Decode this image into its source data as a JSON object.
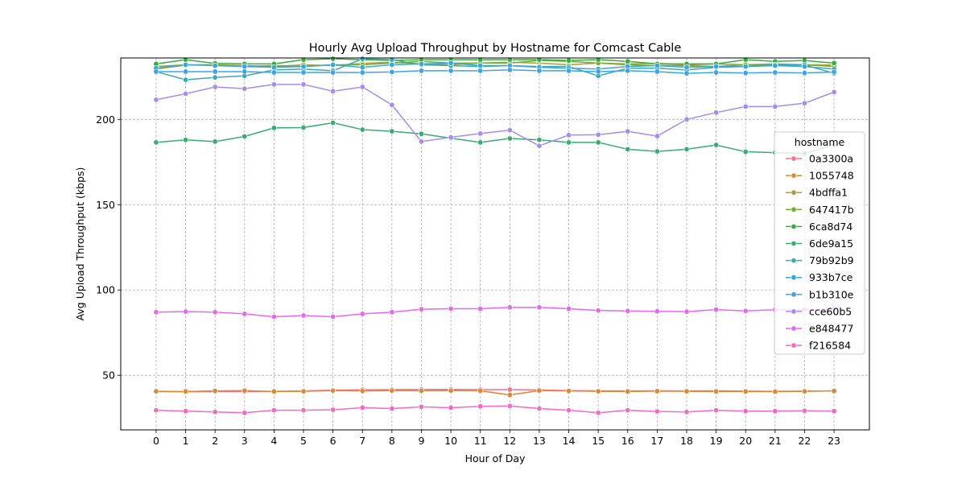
{
  "chart_data": {
    "type": "line",
    "title": "Hourly Avg Upload Throughput by Hostname for Comcast Cable",
    "xlabel": "Hour of Day",
    "ylabel": "Avg Upload Throughput (kbps)",
    "x": [
      0,
      1,
      2,
      3,
      4,
      5,
      6,
      7,
      8,
      9,
      10,
      11,
      12,
      13,
      14,
      15,
      16,
      17,
      18,
      19,
      20,
      21,
      22,
      23
    ],
    "x_ticks": [
      "0",
      "1",
      "2",
      "3",
      "4",
      "5",
      "6",
      "7",
      "8",
      "9",
      "10",
      "11",
      "12",
      "13",
      "14",
      "15",
      "16",
      "17",
      "18",
      "19",
      "20",
      "21",
      "22",
      "23"
    ],
    "y_ticks": [
      "50",
      "100",
      "150",
      "200"
    ],
    "xlim": [
      -1.2,
      24.2
    ],
    "ylim": [
      18,
      236
    ],
    "grid": true,
    "legend": {
      "title": "hostname",
      "placement": "right"
    },
    "series": [
      {
        "name": "0a3300a",
        "color": "#f77189",
        "values": [
          40.5,
          40.3,
          40.5,
          40.4,
          40.6,
          40.8,
          41.3,
          41.5,
          41.6,
          41.7,
          41.7,
          41.6,
          41.6,
          41.4,
          41.0,
          40.9,
          40.8,
          40.9,
          40.8,
          40.9,
          40.7,
          40.6,
          40.7,
          40.8
        ]
      },
      {
        "name": "1055748",
        "color": "#dc8932",
        "values": [
          40.6,
          40.5,
          40.8,
          41.0,
          40.5,
          40.6,
          41.0,
          40.8,
          41.0,
          40.9,
          41.0,
          40.9,
          38.5,
          41.0,
          40.8,
          40.6,
          40.5,
          40.7,
          40.6,
          40.5,
          40.5,
          40.4,
          40.6,
          40.8
        ]
      },
      {
        "name": "4bdffa1",
        "color": "#ae9d31",
        "values": [
          229.5,
          231.8,
          232.0,
          231.5,
          231.0,
          232.0,
          231.5,
          232.8,
          233.5,
          232.5,
          232.0,
          233.0,
          233.5,
          233.0,
          232.0,
          233.0,
          232.5,
          232.8,
          232.0,
          232.5,
          232.0,
          231.5,
          232.0,
          231.8
        ]
      },
      {
        "name": "647417b",
        "color": "#77ab31",
        "values": [
          231.0,
          232.0,
          232.0,
          231.0,
          231.5,
          231.0,
          232.0,
          232.0,
          233.0,
          234.0,
          233.0,
          233.0,
          233.0,
          234.5,
          234.0,
          233.0,
          232.0,
          231.5,
          231.5,
          231.0,
          232.0,
          232.5,
          232.0,
          231.0
        ]
      },
      {
        "name": "6ca8d74",
        "color": "#33b039",
        "values": [
          232.5,
          235.0,
          232.8,
          232.5,
          232.5,
          235.0,
          235.5,
          235.0,
          234.5,
          235.0,
          235.0,
          235.0,
          235.0,
          235.0,
          234.5,
          235.0,
          234.0,
          232.5,
          232.5,
          232.5,
          235.0,
          234.0,
          234.5,
          233.0
        ]
      },
      {
        "name": "6de9a15",
        "color": "#36ad73",
        "values": [
          186.5,
          188.0,
          187.0,
          190.0,
          195.0,
          195.2,
          198.0,
          194.0,
          193.0,
          191.5,
          189.0,
          186.5,
          188.8,
          188.0,
          186.5,
          186.5,
          182.5,
          181.2,
          182.5,
          185.0,
          181.0,
          180.5,
          180.0,
          185.0
        ]
      },
      {
        "name": "79b92b9",
        "color": "#37abb4",
        "values": [
          228.0,
          223.2,
          224.6,
          225.5,
          229.0,
          229.5,
          228.5,
          235.5,
          235.0,
          232.0,
          231.5,
          231.0,
          231.5,
          231.0,
          231.0,
          225.5,
          230.0,
          230.0,
          229.0,
          230.5,
          231.0,
          232.0,
          232.0,
          227.0
        ]
      },
      {
        "name": "933b7ce",
        "color": "#39a6dc",
        "values": [
          230.0,
          232.0,
          231.5,
          231.0,
          230.5,
          231.0,
          232.0,
          230.5,
          232.0,
          232.5,
          233.0,
          231.5,
          231.5,
          230.5,
          230.0,
          229.5,
          231.0,
          231.5,
          230.5,
          231.0,
          231.0,
          231.5,
          231.0,
          229.5
        ]
      },
      {
        "name": "b1b310e",
        "color": "#3ba3ec",
        "values": [
          228.0,
          228.0,
          228.0,
          228.0,
          227.5,
          227.5,
          227.5,
          227.5,
          227.8,
          228.5,
          228.5,
          228.5,
          229.0,
          228.5,
          228.5,
          228.0,
          228.5,
          228.0,
          227.0,
          227.5,
          227.2,
          227.5,
          227.2,
          227.8
        ]
      },
      {
        "name": "cce60b5",
        "color": "#a48cf4",
        "values": [
          211.5,
          215.0,
          219.0,
          218.0,
          220.5,
          220.5,
          216.5,
          219.0,
          208.5,
          187.0,
          189.5,
          191.7,
          193.7,
          184.5,
          190.8,
          191.0,
          193.0,
          190.2,
          200.0,
          204.0,
          207.5,
          207.5,
          209.5,
          216.0
        ]
      },
      {
        "name": "e848477",
        "color": "#e866f4",
        "values": [
          87.0,
          87.3,
          87.0,
          86.0,
          84.3,
          85.0,
          84.3,
          86.0,
          87.0,
          88.7,
          89.0,
          89.0,
          89.8,
          89.8,
          89.0,
          88.0,
          87.7,
          87.5,
          87.3,
          88.5,
          87.7,
          88.5,
          88.5,
          88.8
        ]
      },
      {
        "name": "f216584",
        "color": "#f668c2",
        "values": [
          29.5,
          29.0,
          28.5,
          28.0,
          29.5,
          29.5,
          29.8,
          31.0,
          30.5,
          31.5,
          31.0,
          31.8,
          32.0,
          30.5,
          29.5,
          28.0,
          29.5,
          28.8,
          28.5,
          29.5,
          29.0,
          29.0,
          29.2,
          29.0
        ]
      }
    ]
  }
}
